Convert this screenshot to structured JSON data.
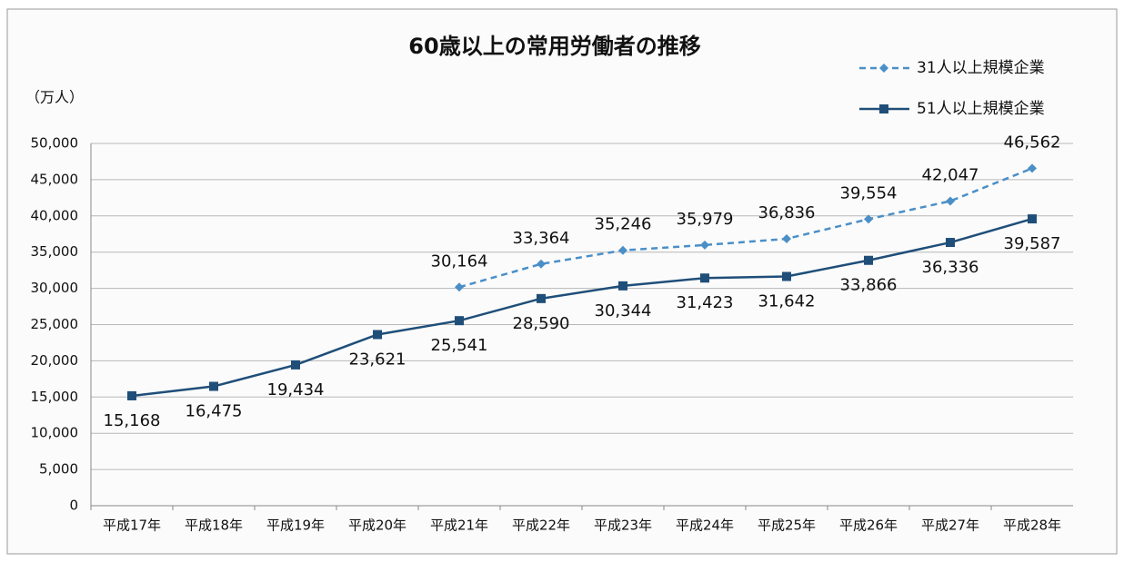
{
  "chart_data": {
    "type": "line",
    "title": "60歳以上の常用労働者の推移",
    "y_label": "（万人）",
    "categories": [
      "平成17年",
      "平成18年",
      "平成19年",
      "平成20年",
      "平成21年",
      "平成22年",
      "平成23年",
      "平成24年",
      "平成25年",
      "平成26年",
      "平成27年",
      "平成28年"
    ],
    "series": [
      {
        "name": "31人以上規模企業",
        "color": "#4a8fc7",
        "line_style": "dashed",
        "marker": "diamond",
        "values": [
          null,
          null,
          null,
          null,
          30164,
          33364,
          35246,
          35979,
          36836,
          39554,
          42047,
          46562
        ],
        "value_labels": [
          null,
          null,
          null,
          null,
          "30,164",
          "33,364",
          "35,246",
          "35,979",
          "36,836",
          "39,554",
          "42,047",
          "46,562"
        ]
      },
      {
        "name": "51人以上規模企業",
        "color": "#1f4e79",
        "line_style": "solid",
        "marker": "square",
        "values": [
          15168,
          16475,
          19434,
          23621,
          25541,
          28590,
          30344,
          31423,
          31642,
          33866,
          36336,
          39587
        ],
        "value_labels": [
          "15,168",
          "16,475",
          "19,434",
          "23,621",
          "25,541",
          "28,590",
          "30,344",
          "31,423",
          "31,642",
          "33,866",
          "36,336",
          "39,587"
        ]
      }
    ],
    "ylim": [
      0,
      50000
    ],
    "yticks": [
      0,
      {
        "value": 5000,
        "label": "5,000"
      },
      {
        "value": 10000,
        "label": "10,000"
      },
      {
        "value": 15000,
        "label": "15,000"
      },
      {
        "value": 20000,
        "label": "20,000"
      },
      {
        "value": 25000,
        "label": "25,000"
      },
      {
        "value": 30000,
        "label": "30,000"
      },
      {
        "value": 35000,
        "label": "35,000"
      },
      {
        "value": 40000,
        "label": "40,000"
      },
      {
        "value": 45000,
        "label": "45,000"
      },
      {
        "value": 50000,
        "label": "50,000"
      }
    ],
    "grid": true,
    "legend": "top-right"
  }
}
